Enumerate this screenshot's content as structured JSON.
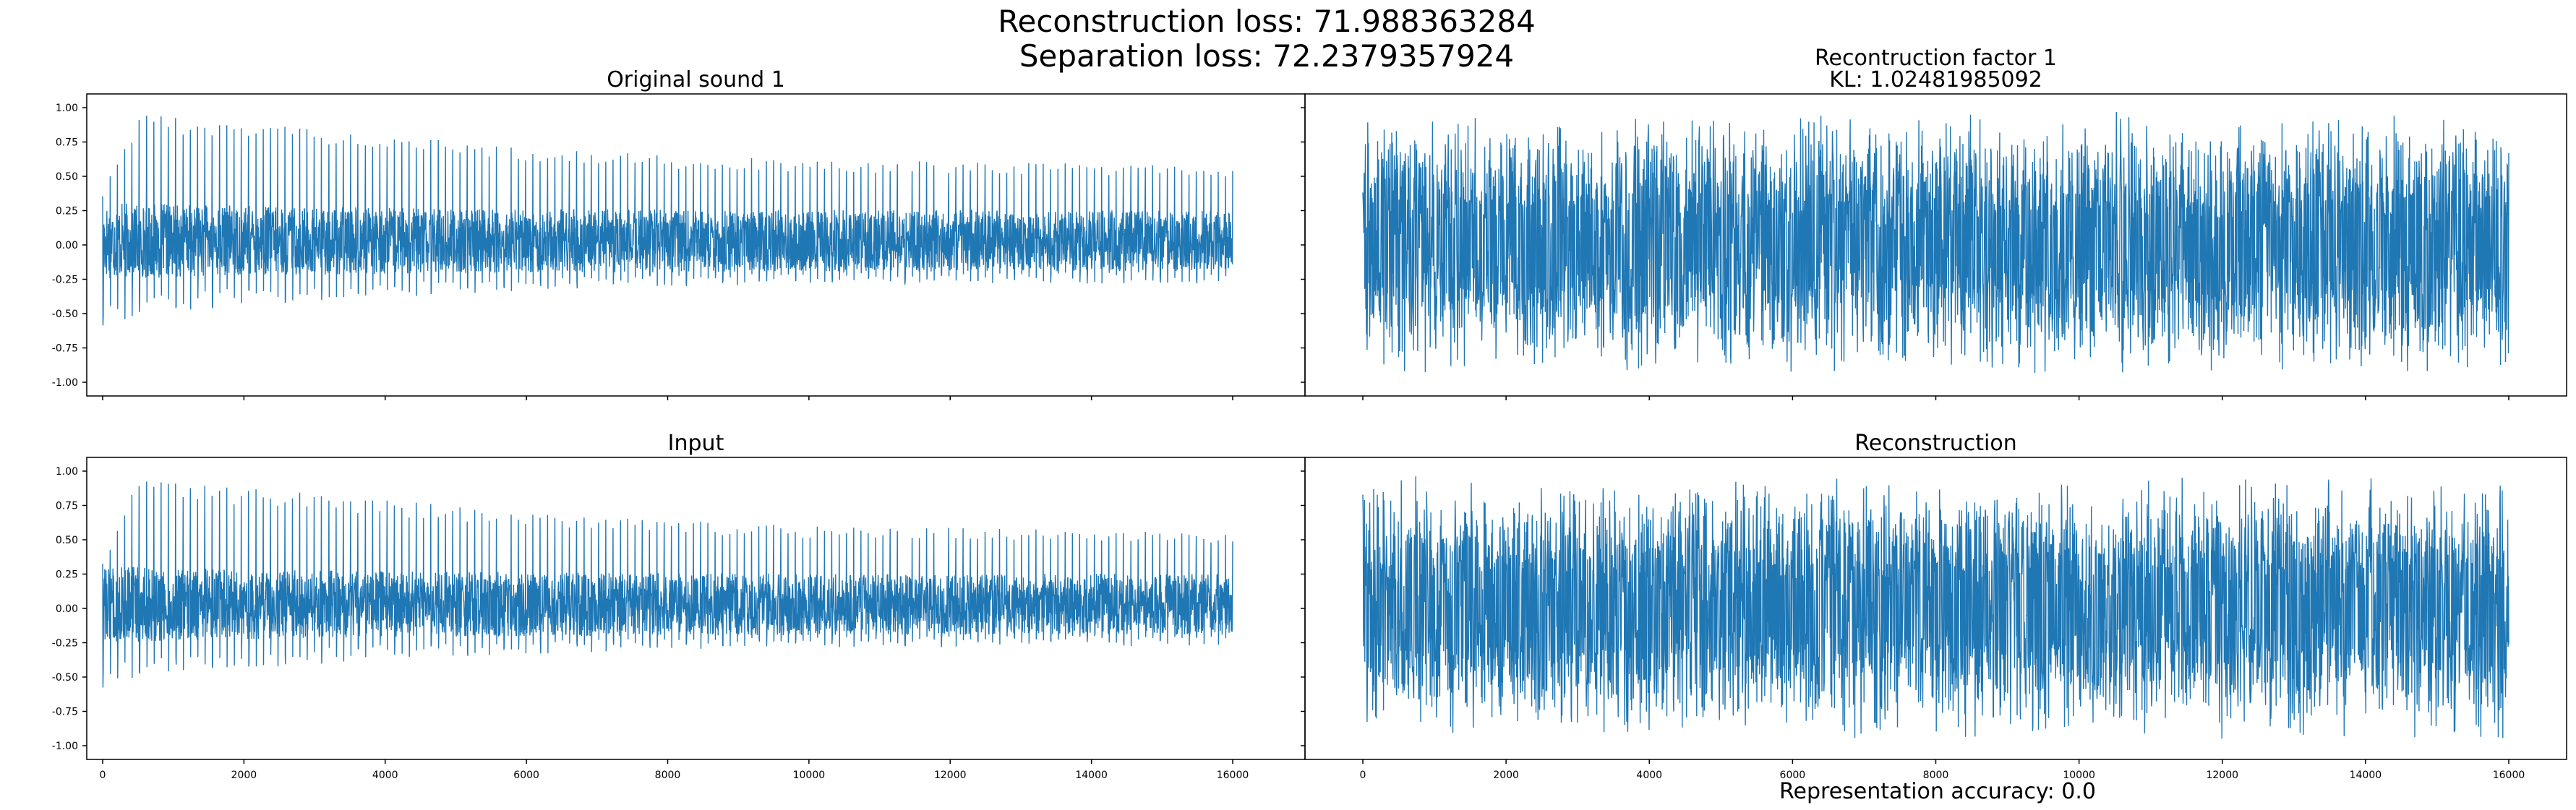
{
  "figure": {
    "suptitle_line1": "Reconstruction loss: 71.988363284",
    "suptitle_line2": "Separation loss: 72.2379357924",
    "footer": "Representation accuracy: 0.0",
    "line_color": "#1f77b4"
  },
  "chart_data": [
    {
      "type": "line",
      "id": "original",
      "title": "Original sound 1",
      "x_range": [
        0,
        16000
      ],
      "ylim": [
        -1.1,
        1.1
      ],
      "xticks": [
        0,
        2000,
        4000,
        6000,
        8000,
        10000,
        12000,
        14000,
        16000
      ],
      "yticks": [
        -1.0,
        -0.75,
        -0.5,
        -0.25,
        0.0,
        0.25,
        0.5,
        0.75,
        1.0
      ],
      "ytick_labels": [
        "-1.00",
        "-0.75",
        "-0.50",
        "-0.25",
        "0.00",
        "0.25",
        "0.50",
        "0.75",
        "1.00"
      ],
      "show_xtick_labels": false,
      "show_ytick_labels": true,
      "signal": "pulsed-decay",
      "peak_envelope": [
        [
          0,
          0.4
        ],
        [
          500,
          0.95
        ],
        [
          2000,
          0.9
        ],
        [
          6000,
          0.72
        ],
        [
          8000,
          0.65
        ],
        [
          10000,
          0.62
        ],
        [
          16000,
          0.58
        ]
      ],
      "trough_envelope": [
        [
          0,
          -0.62
        ],
        [
          500,
          -0.5
        ],
        [
          4000,
          -0.38
        ],
        [
          8000,
          -0.3
        ],
        [
          16000,
          -0.28
        ]
      ],
      "band": [
        -0.2,
        0.3
      ]
    },
    {
      "type": "line",
      "id": "recon_factor",
      "title": "Recontruction factor 1",
      "subtitle": "KL: 1.02481985092",
      "x_range": [
        0,
        16000
      ],
      "ylim": [
        -1.1,
        1.1
      ],
      "xticks": [
        0,
        2000,
        4000,
        6000,
        8000,
        10000,
        12000,
        14000,
        16000
      ],
      "yticks": [
        -1.0,
        -0.75,
        -0.5,
        -0.25,
        0.0,
        0.25,
        0.5,
        0.75,
        1.0
      ],
      "show_xtick_labels": false,
      "show_ytick_labels": false,
      "signal": "noise",
      "band": [
        -0.97,
        0.97
      ]
    },
    {
      "type": "line",
      "id": "input",
      "title": "Input",
      "x_range": [
        0,
        16000
      ],
      "ylim": [
        -1.1,
        1.1
      ],
      "xticks": [
        0,
        2000,
        4000,
        6000,
        8000,
        10000,
        12000,
        14000,
        16000
      ],
      "xtick_labels": [
        "0",
        "2000",
        "4000",
        "6000",
        "8000",
        "10000",
        "12000",
        "14000",
        "16000"
      ],
      "yticks": [
        -1.0,
        -0.75,
        -0.5,
        -0.25,
        0.0,
        0.25,
        0.5,
        0.75,
        1.0
      ],
      "ytick_labels": [
        "-1.00",
        "-0.75",
        "-0.50",
        "-0.25",
        "0.00",
        "0.25",
        "0.50",
        "0.75",
        "1.00"
      ],
      "show_xtick_labels": true,
      "show_ytick_labels": true,
      "signal": "pulsed-decay",
      "peak_envelope": [
        [
          0,
          0.36
        ],
        [
          500,
          0.93
        ],
        [
          2000,
          0.88
        ],
        [
          6000,
          0.7
        ],
        [
          8000,
          0.64
        ],
        [
          10000,
          0.6
        ],
        [
          16000,
          0.56
        ]
      ],
      "trough_envelope": [
        [
          0,
          -0.6
        ],
        [
          500,
          -0.5
        ],
        [
          4000,
          -0.37
        ],
        [
          8000,
          -0.3
        ],
        [
          16000,
          -0.27
        ]
      ],
      "band": [
        -0.2,
        0.3
      ]
    },
    {
      "type": "line",
      "id": "reconstruction",
      "title": "Reconstruction",
      "x_range": [
        0,
        16000
      ],
      "ylim": [
        -1.1,
        1.1
      ],
      "xticks": [
        0,
        2000,
        4000,
        6000,
        8000,
        10000,
        12000,
        14000,
        16000
      ],
      "xtick_labels": [
        "0",
        "2000",
        "4000",
        "6000",
        "8000",
        "10000",
        "12000",
        "14000",
        "16000"
      ],
      "yticks": [
        -1.0,
        -0.75,
        -0.5,
        -0.25,
        0.0,
        0.25,
        0.5,
        0.75,
        1.0
      ],
      "show_xtick_labels": true,
      "show_ytick_labels": false,
      "signal": "noise",
      "band": [
        -0.97,
        0.97
      ]
    }
  ]
}
